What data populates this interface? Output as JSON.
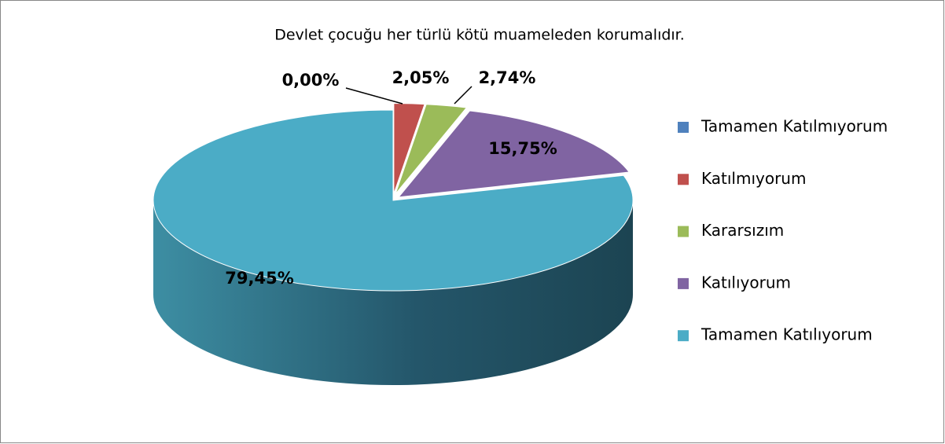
{
  "chart_data": {
    "type": "pie",
    "title": "Devlet çocuğu her türlü kötü muameleden korumalıdır.",
    "categories": [
      "Tamamen Katılmıyorum",
      "Katılmıyorum",
      "Kararsızım",
      "Katılıyorum",
      "Tamamen Katılıyorum"
    ],
    "values": [
      0,
      2.05,
      2.74,
      15.75,
      79.45
    ],
    "value_labels": [
      "0,00%",
      "2,05%",
      "2,74%",
      "15,75%",
      "79,45%"
    ],
    "colors": [
      "#4f81bd",
      "#c0504d",
      "#9bbb59",
      "#8064a2",
      "#4bacc6"
    ],
    "legend": "right"
  }
}
